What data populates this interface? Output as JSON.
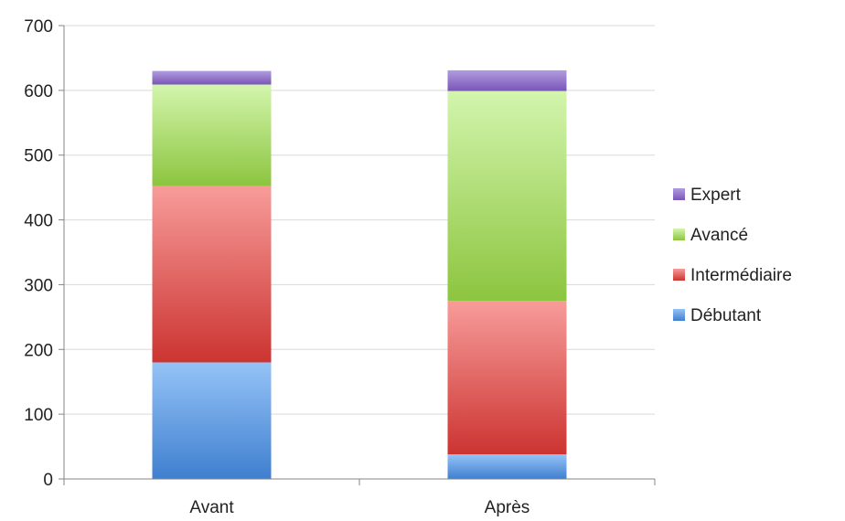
{
  "chart_data": {
    "type": "bar",
    "stacked": true,
    "categories": [
      "Avant",
      "Après"
    ],
    "series": [
      {
        "name": "Débutant",
        "values": [
          180,
          38
        ],
        "color_top": "#95c3f7",
        "color_bottom": "#3f7fcf"
      },
      {
        "name": "Intermédiaire",
        "values": [
          272,
          237
        ],
        "color_top": "#f79c9a",
        "color_bottom": "#cc3431"
      },
      {
        "name": "Avancé",
        "values": [
          157,
          324
        ],
        "color_top": "#d3f5ad",
        "color_bottom": "#8cc53f"
      },
      {
        "name": "Expert",
        "values": [
          21,
          32
        ],
        "color_top": "#b19cdf",
        "color_bottom": "#7a55b8"
      }
    ],
    "ylim": [
      0,
      700
    ],
    "yticks": [
      0,
      100,
      200,
      300,
      400,
      500,
      600,
      700
    ],
    "grid": true,
    "legend_position": "right",
    "title": "",
    "xlabel": "",
    "ylabel": ""
  }
}
